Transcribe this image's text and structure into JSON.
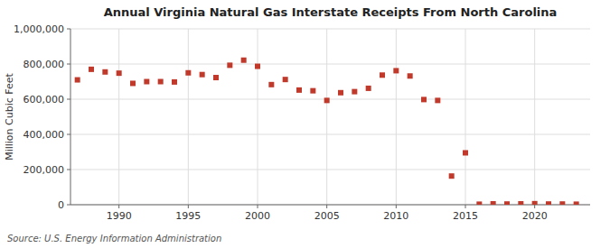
{
  "chart_data": {
    "type": "scatter",
    "title": "Annual Virginia Natural Gas Interstate Receipts From North Carolina",
    "ylabel": "Million Cubic Feet",
    "source": "Source: U.S. Energy Information Administration",
    "x": [
      1987,
      1988,
      1989,
      1990,
      1991,
      1992,
      1993,
      1994,
      1995,
      1996,
      1997,
      1998,
      1999,
      2000,
      2001,
      2002,
      2003,
      2004,
      2005,
      2006,
      2007,
      2008,
      2009,
      2010,
      2011,
      2012,
      2013,
      2014,
      2015,
      2016,
      2017,
      2018,
      2019,
      2020,
      2021,
      2022,
      2023
    ],
    "values": [
      710000,
      770000,
      755000,
      748000,
      690000,
      700000,
      700000,
      698000,
      750000,
      740000,
      723000,
      793000,
      822000,
      787000,
      683000,
      712000,
      652000,
      648000,
      593000,
      637000,
      643000,
      662000,
      737000,
      762000,
      732000,
      598000,
      593000,
      163000,
      295000,
      3000,
      5000,
      4000,
      5000,
      6000,
      4000,
      4000,
      3000
    ],
    "color": "#c0392b",
    "marker": "square",
    "xlim": [
      1986.5,
      2024
    ],
    "xticks": [
      1990,
      1995,
      2000,
      2005,
      2010,
      2015,
      2020
    ],
    "ylim": [
      0,
      1000000
    ],
    "yticks": [
      0,
      {
        "value": 200000,
        "label": "200,000"
      },
      {
        "value": 400000,
        "label": "400,000"
      },
      {
        "value": 600000,
        "label": "600,000"
      },
      {
        "value": 800000,
        "label": "800,000"
      },
      {
        "value": 1000000,
        "label": "1,000,000"
      }
    ],
    "grid": true
  }
}
